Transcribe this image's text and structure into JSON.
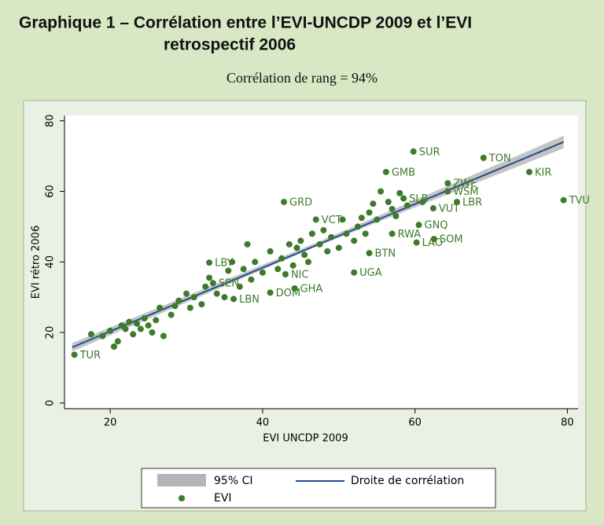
{
  "chart_data": {
    "type": "scatter",
    "title": [
      "Graphique 1 – Corrélation entre l’EVI-UNCDP 2009 et l’EVI",
      "retrospectif 2006"
    ],
    "subtitle": "Corrélation de rang = 94%",
    "xlabel": "EVI UNCDP 2009",
    "ylabel": "EVI rétro 2006",
    "xlim": [
      14,
      81.4
    ],
    "ylim": [
      -1.6,
      81.5
    ],
    "xticks": [
      20,
      40,
      60,
      80
    ],
    "yticks": [
      0,
      20,
      40,
      60,
      80
    ],
    "ci": {
      "name": "95% CI",
      "color": "#b5b5b5",
      "x": [
        15,
        47,
        79.5
      ],
      "lower": [
        14.6,
        44.3,
        72.2
      ],
      "upper": [
        17,
        45.4,
        75.8
      ]
    },
    "fit": {
      "name": "Droite de corrélation",
      "color": "#1f4e8c",
      "x": [
        15,
        79.5
      ],
      "values": [
        15.8,
        74
      ]
    },
    "series": [
      {
        "name": "EVI",
        "color": "#3d7a2a",
        "x": [
          15.3,
          17.5,
          19,
          20,
          20.5,
          21,
          21.5,
          22,
          22.5,
          23,
          23.5,
          24,
          24.5,
          25,
          25.5,
          26,
          26.5,
          27,
          28,
          28.5,
          29,
          30,
          30.5,
          31,
          32,
          32.5,
          33,
          33,
          33.5,
          34,
          35,
          35.5,
          36,
          36.2,
          37,
          37.5,
          38,
          38.5,
          39,
          40,
          41,
          41,
          42,
          42.5,
          43,
          42.8,
          43.5,
          44,
          44.2,
          44.5,
          45,
          45.5,
          46,
          46.5,
          47,
          47.5,
          48,
          48.5,
          49,
          50,
          50.5,
          51,
          52,
          52,
          52.5,
          53,
          53.5,
          54,
          54,
          54.5,
          55,
          55.5,
          56.2,
          56.5,
          57,
          57,
          57.5,
          58,
          58.5,
          59,
          59.8,
          60.2,
          60.5,
          61,
          62.4,
          62.5,
          64.3,
          64.3,
          65.5,
          69,
          75,
          79.5
        ],
        "values": [
          13.7,
          19.5,
          19,
          20.5,
          16,
          17.5,
          22,
          21,
          23,
          19.5,
          22.5,
          21,
          24,
          22,
          20,
          23.5,
          27,
          19,
          25,
          27.5,
          29,
          31,
          27,
          30,
          28,
          33,
          35.5,
          39.8,
          34,
          31,
          30,
          37.5,
          40,
          29.5,
          33,
          38,
          45,
          35,
          40,
          37,
          31.3,
          43,
          38,
          41,
          36.5,
          57,
          45,
          39,
          32.5,
          44,
          46,
          42,
          40,
          48,
          52,
          45,
          49,
          43,
          47,
          44,
          52,
          48,
          46,
          37,
          50,
          52.5,
          48,
          42.5,
          54,
          56.5,
          52,
          60,
          65.5,
          57,
          55,
          48,
          53,
          59.5,
          58,
          56,
          71.3,
          45.5,
          50.5,
          57,
          55.2,
          46.5,
          60,
          62.3,
          57,
          69.5,
          65.5,
          57.5
        ],
        "labels": [
          "TUR",
          null,
          null,
          null,
          null,
          null,
          null,
          null,
          null,
          null,
          null,
          null,
          null,
          null,
          null,
          null,
          null,
          null,
          null,
          null,
          null,
          null,
          null,
          null,
          null,
          null,
          null,
          "LBY",
          "SEN",
          null,
          null,
          null,
          null,
          "LBN",
          null,
          null,
          null,
          null,
          null,
          null,
          "DOM",
          null,
          null,
          null,
          "NIC",
          "GRD",
          null,
          null,
          "GHA",
          null,
          null,
          null,
          null,
          null,
          "VCT",
          null,
          null,
          null,
          null,
          null,
          null,
          null,
          null,
          "UGA",
          null,
          null,
          null,
          "BTN",
          null,
          null,
          null,
          null,
          "GMB",
          null,
          null,
          "RWA",
          null,
          null,
          "SLB",
          null,
          "SUR",
          "LAO",
          "GNQ",
          null,
          "VUT",
          "SOM",
          "WSM",
          "ZWE",
          "LBR",
          "TON",
          "KIR",
          "TVU"
        ]
      }
    ]
  }
}
